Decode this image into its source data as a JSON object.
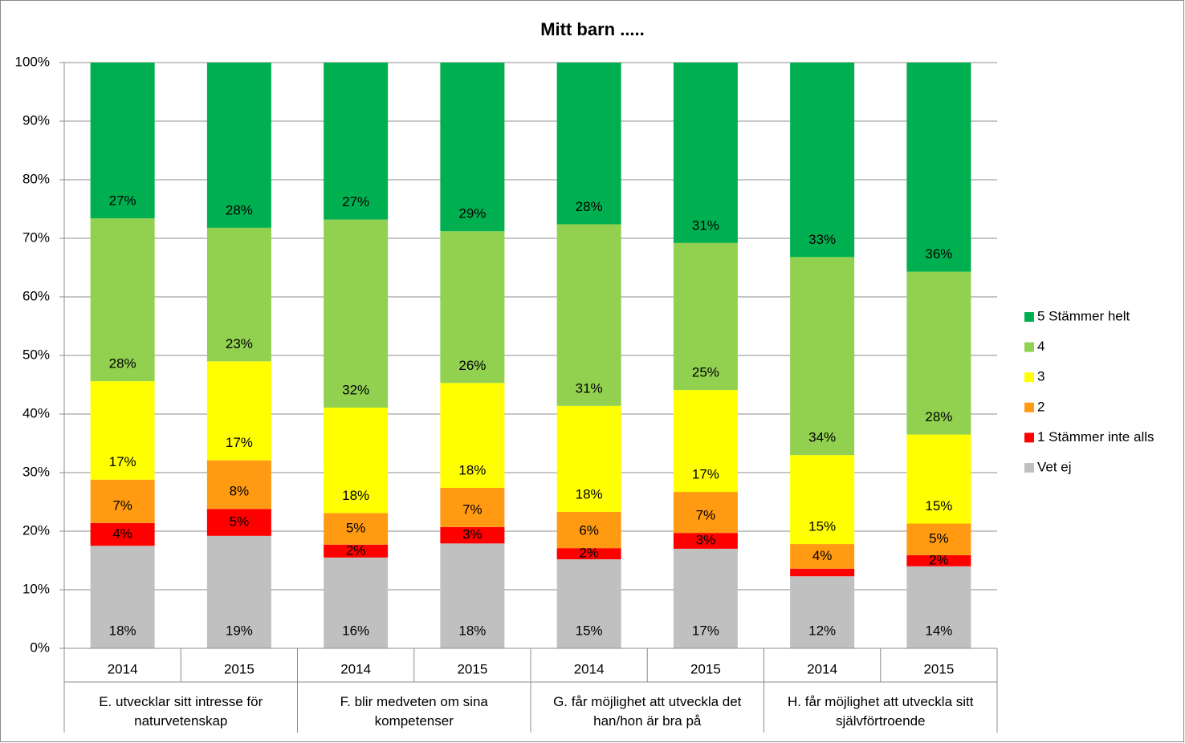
{
  "chart_data": {
    "type": "stacked_bar",
    "title": "Mitt barn .....",
    "categories": [
      "2014",
      "2015",
      "2014",
      "2015",
      "2014",
      "2015",
      "2014",
      "2015"
    ],
    "groups": [
      "E. utvecklar sitt intresse för naturvetenskap",
      "F. blir medveten om sina kompetenser",
      "G. får möjlighet att utveckla det han/hon är bra på",
      "H. får möjlighet att utveckla sitt självförtroende"
    ],
    "ylim": [
      0,
      100
    ],
    "yticks": [
      {
        "value": 0,
        "label": "0%"
      },
      {
        "value": 10,
        "label": "10%"
      },
      {
        "value": 20,
        "label": "20%"
      },
      {
        "value": 30,
        "label": "30%"
      },
      {
        "value": 40,
        "label": "40%"
      },
      {
        "value": 50,
        "label": "50%"
      },
      {
        "value": 60,
        "label": "60%"
      },
      {
        "value": 70,
        "label": "70%"
      },
      {
        "value": 80,
        "label": "80%"
      },
      {
        "value": 90,
        "label": "90%"
      },
      {
        "value": 100,
        "label": "100%"
      }
    ],
    "grid": true,
    "legend": "right",
    "series": [
      {
        "name": "Vet ej",
        "color": "#c0c0c0",
        "values": [
          17.5,
          19.2,
          15.5,
          17.9,
          15.2,
          17.0,
          12.3,
          14.0
        ],
        "value_labels": [
          "18%",
          "19%",
          "16%",
          "18%",
          "15%",
          "17%",
          "12%",
          "14%"
        ]
      },
      {
        "name": "1 Stämmer inte alls",
        "color": "#ff0000",
        "values": [
          3.9,
          4.6,
          2.2,
          2.8,
          1.9,
          2.7,
          1.3,
          1.9
        ],
        "value_labels": [
          "4%",
          "5%",
          "2%",
          "3%",
          "2%",
          "3%",
          null,
          "2%"
        ]
      },
      {
        "name": "2",
        "color": "#ff9a12",
        "values": [
          7.4,
          8.3,
          5.4,
          6.7,
          6.2,
          7.0,
          4.2,
          5.4
        ],
        "value_labels": [
          "7%",
          "8%",
          "5%",
          "7%",
          "6%",
          "7%",
          "4%",
          "5%"
        ]
      },
      {
        "name": "3",
        "color": "#ffff00",
        "values": [
          16.8,
          16.9,
          18.0,
          17.9,
          18.1,
          17.4,
          15.2,
          15.2
        ],
        "value_labels": [
          "17%",
          "17%",
          "18%",
          "18%",
          "18%",
          "17%",
          "15%",
          "15%"
        ]
      },
      {
        "name": "4",
        "color": "#92d050",
        "values": [
          27.8,
          22.8,
          32.1,
          25.9,
          31.0,
          25.1,
          33.8,
          27.8
        ],
        "value_labels": [
          "28%",
          "23%",
          "32%",
          "26%",
          "31%",
          "25%",
          "34%",
          "28%"
        ]
      },
      {
        "name": "5 Stämmer helt",
        "color": "#00b050",
        "values": [
          26.6,
          28.2,
          26.8,
          28.8,
          27.6,
          30.8,
          33.2,
          35.7
        ],
        "value_labels": [
          "27%",
          "28%",
          "27%",
          "29%",
          "28%",
          "31%",
          "33%",
          "36%"
        ]
      }
    ]
  }
}
